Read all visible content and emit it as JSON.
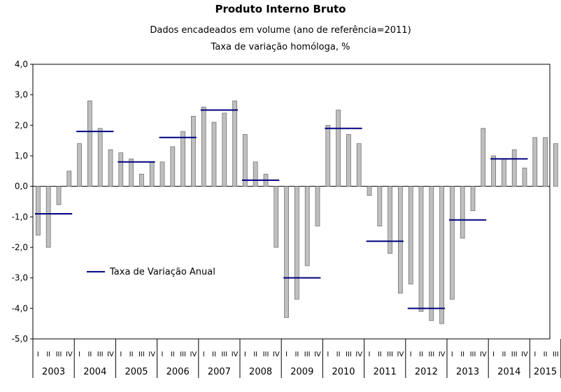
{
  "chart_data": {
    "type": "bar",
    "title": "Produto Interno Bruto",
    "subtitles": [
      "Dados encadeados em volume (ano de referência=2011)",
      "Taxa de variação homóloga, %"
    ],
    "xlabel": "",
    "ylabel": "",
    "ylim": [
      -5.0,
      4.0
    ],
    "yticks": [
      "4,0",
      "3,0",
      "2,0",
      "1,0",
      "0,0",
      "-1,0",
      "-2,0",
      "-3,0",
      "-4,0",
      "-5,0"
    ],
    "quarter_labels": [
      "I",
      "II",
      "III",
      "IV"
    ],
    "years": [
      "2003",
      "2004",
      "2005",
      "2006",
      "2007",
      "2008",
      "2009",
      "2010",
      "2011",
      "2012",
      "2013",
      "2014",
      "2015"
    ],
    "series": [
      {
        "name": "",
        "kind": "bar",
        "color": "#bfbfbf",
        "values": [
          -1.6,
          -2.0,
          -0.6,
          0.5,
          1.4,
          2.8,
          1.9,
          1.2,
          1.1,
          0.9,
          0.4,
          0.8,
          0.8,
          1.3,
          1.8,
          2.3,
          2.6,
          2.1,
          2.4,
          2.8,
          1.7,
          0.8,
          0.4,
          -2.0,
          -4.3,
          -3.7,
          -2.6,
          -1.3,
          2.0,
          2.5,
          1.7,
          1.4,
          -0.3,
          -1.3,
          -2.2,
          -3.5,
          -3.2,
          -4.1,
          -4.4,
          -4.5,
          -3.7,
          -1.7,
          -0.8,
          1.9,
          1.0,
          0.9,
          1.2,
          0.6,
          1.6,
          1.6,
          1.4
        ]
      },
      {
        "name": "Taxa de Variação Anual",
        "kind": "annual-line",
        "color": "#000080",
        "values": [
          -0.9,
          1.8,
          0.8,
          1.6,
          2.5,
          0.2,
          -3.0,
          1.9,
          -1.8,
          -4.0,
          -1.1,
          0.9,
          null
        ]
      }
    ],
    "legend": {
      "label": "Taxa de Variação Anual",
      "placement": "left-lower"
    },
    "grid": false
  }
}
